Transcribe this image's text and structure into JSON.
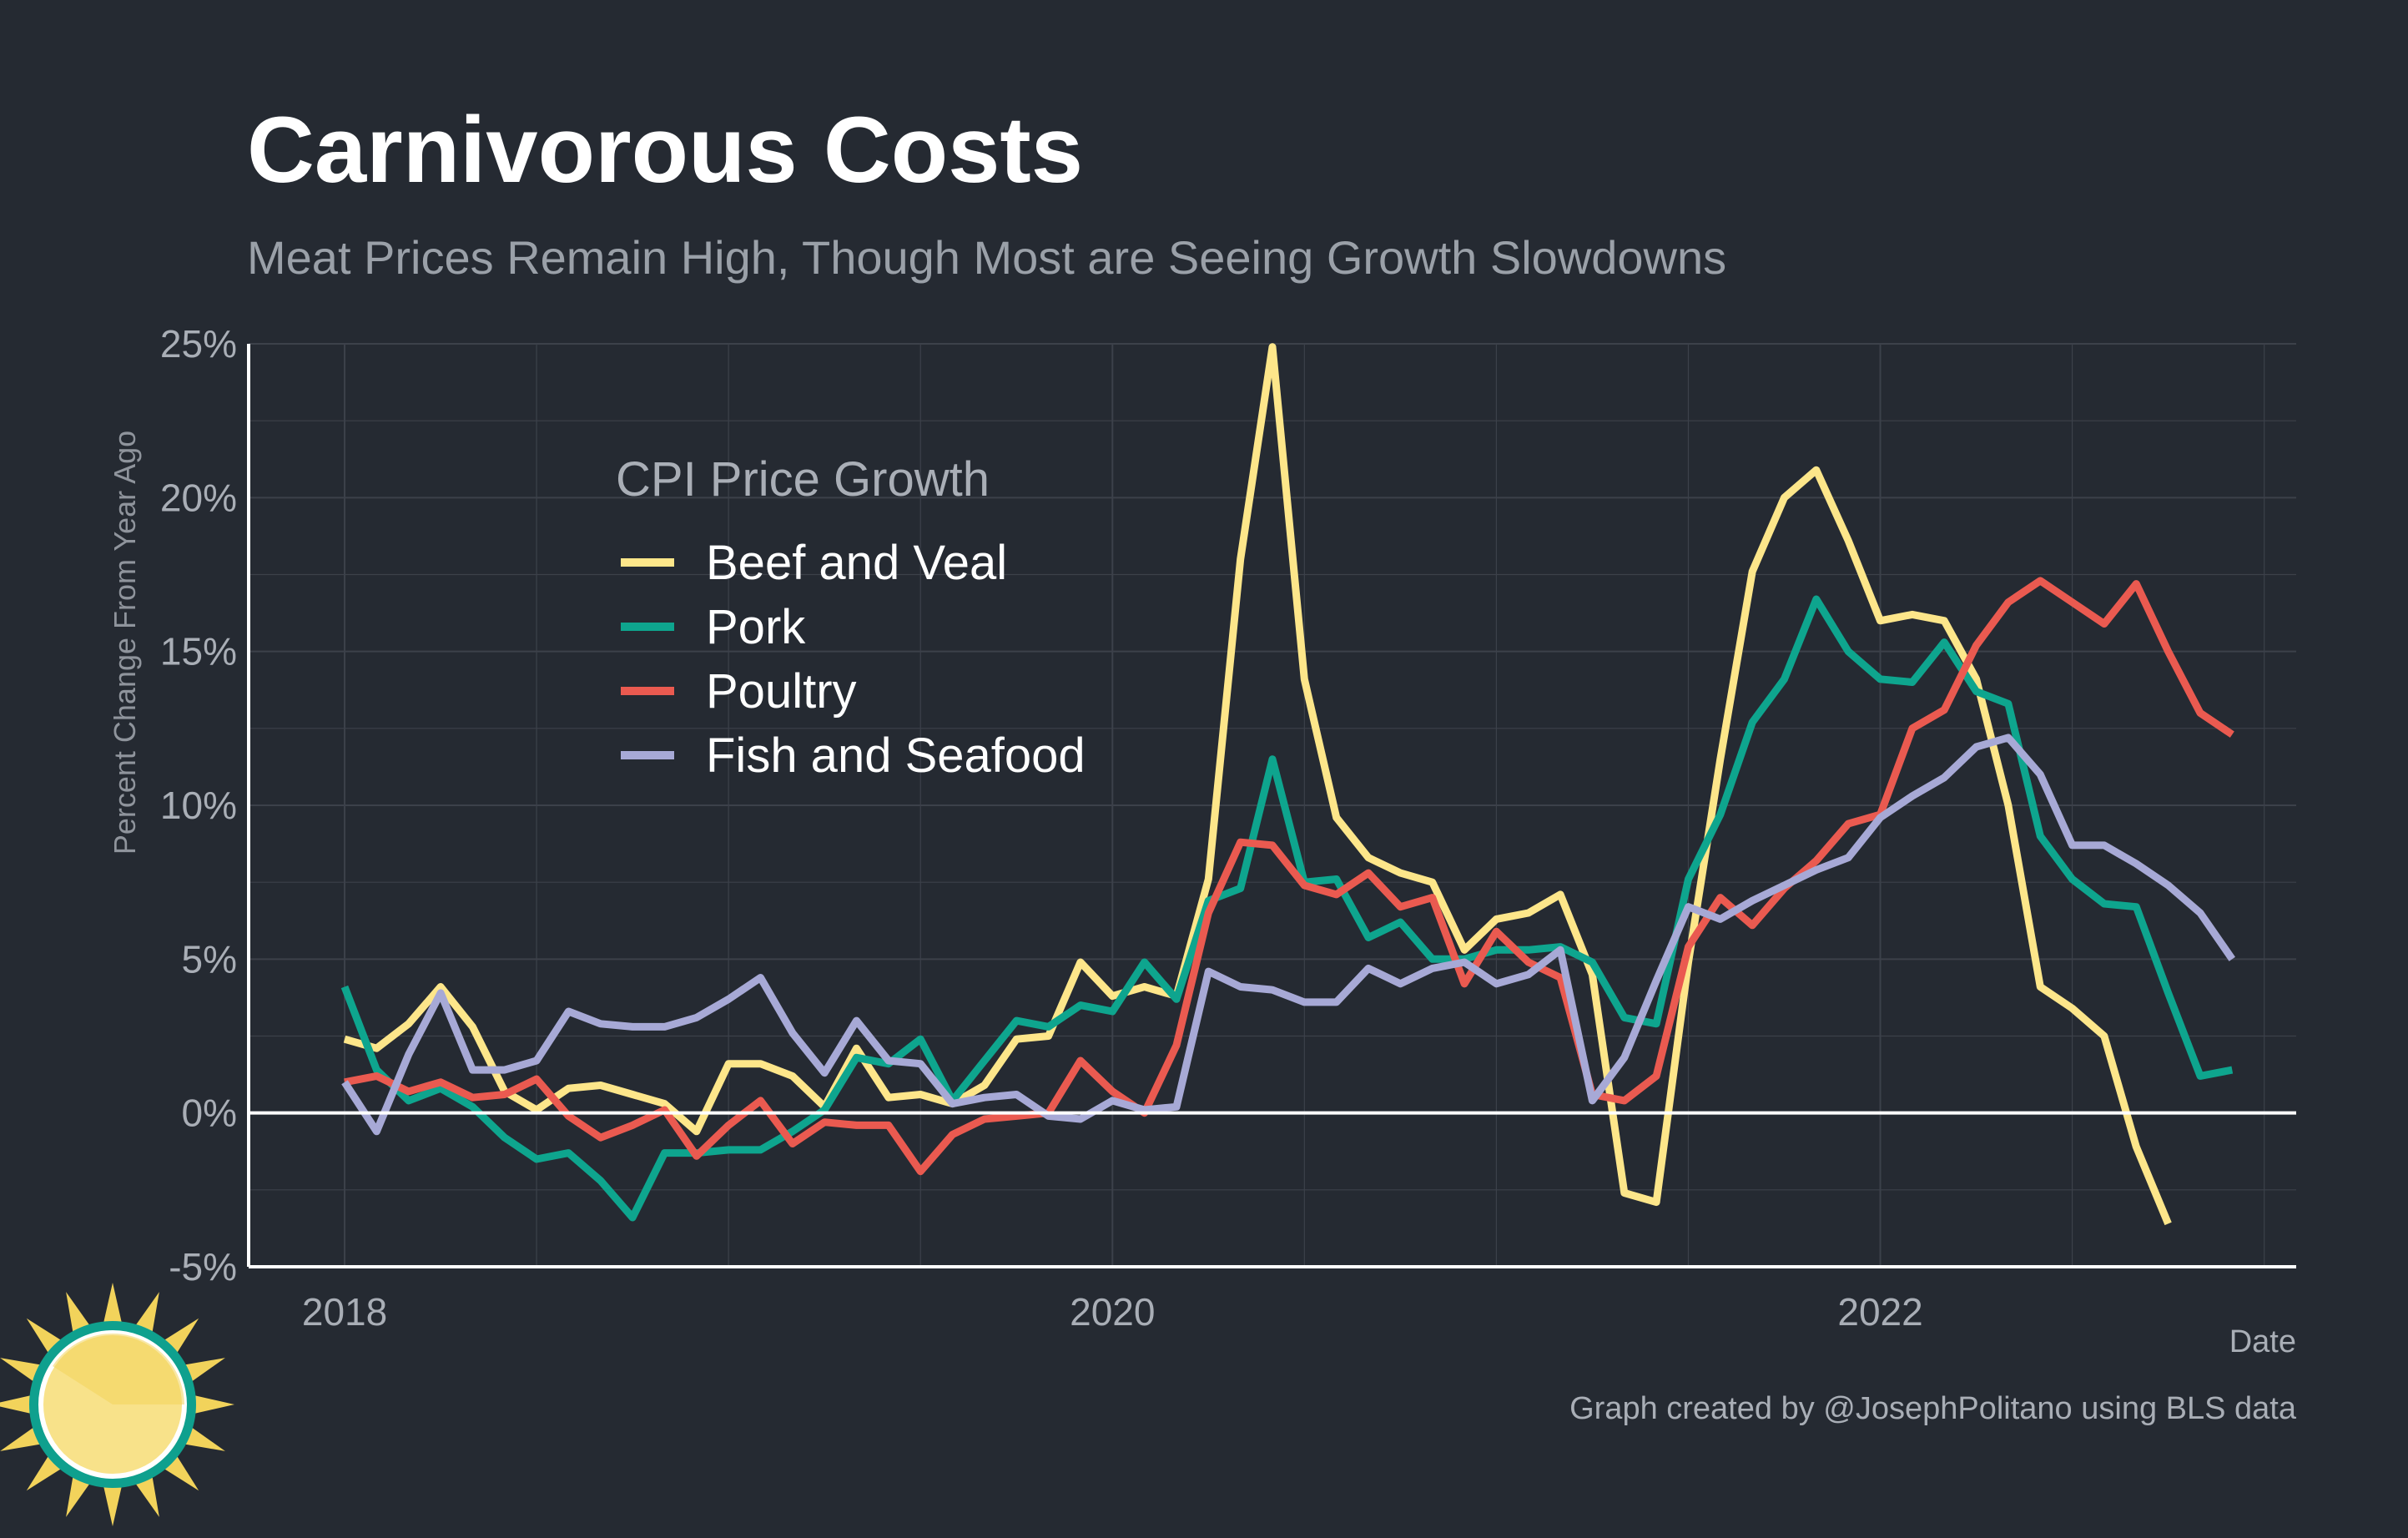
{
  "header": {
    "title": "Carnivorous Costs",
    "subtitle": "Meat Prices Remain High, Though Most are Seeing Growth Slowdowns"
  },
  "caption": "Graph created by @JosephPolitano using BLS data",
  "colors": {
    "background": "#252a32",
    "grid": "#3c414a",
    "axis": "#ffffff",
    "zero_line": "#ffffff"
  },
  "chart_data": {
    "type": "line",
    "title": "Carnivorous Costs",
    "subtitle": "Meat Prices Remain High, Though Most are Seeing Growth Slowdowns",
    "xlabel": "Date",
    "ylabel": "Percent Change From Year Ago",
    "x_start": "2018-01",
    "x_step": "month",
    "xlim": [
      "2017-10",
      "2023-02"
    ],
    "ylim": [
      -5,
      25
    ],
    "x_ticks": [
      2018,
      2020,
      2022
    ],
    "x_tick_labels": [
      "2018",
      "2020",
      "2022"
    ],
    "y_ticks": [
      -5,
      0,
      5,
      10,
      15,
      20,
      25
    ],
    "y_tick_labels": [
      "-5%",
      "0%",
      "5%",
      "10%",
      "15%",
      "20%",
      "25%"
    ],
    "grid": true,
    "legend": {
      "title": "CPI Price Growth",
      "position": "top-left inside"
    },
    "series": [
      {
        "name": "Beef and Veal",
        "color": "#fde68a",
        "values": [
          2.4,
          2.1,
          2.9,
          4.1,
          2.8,
          0.7,
          0.1,
          0.8,
          0.9,
          0.6,
          0.3,
          -0.6,
          1.6,
          1.6,
          1.2,
          0.2,
          2.1,
          0.5,
          0.6,
          0.3,
          0.9,
          2.4,
          2.5,
          4.9,
          3.8,
          4.1,
          3.8,
          7.6,
          18.0,
          24.9,
          14.1,
          9.6,
          8.3,
          7.8,
          7.5,
          5.3,
          6.3,
          6.5,
          7.1,
          4.5,
          -2.6,
          -2.9,
          4.9,
          11.5,
          17.6,
          20.0,
          20.9,
          18.6,
          16.0,
          16.2,
          16.0,
          14.1,
          10.0,
          4.1,
          3.4,
          2.5,
          -1.1,
          -3.6
        ]
      },
      {
        "name": "Pork",
        "color": "#0ea58e",
        "values": [
          4.1,
          1.4,
          0.4,
          0.8,
          0.2,
          -0.8,
          -1.5,
          -1.3,
          -2.2,
          -3.4,
          -1.3,
          -1.3,
          -1.2,
          -1.2,
          -0.6,
          0.1,
          1.8,
          1.6,
          2.4,
          0.4,
          1.7,
          3.0,
          2.8,
          3.5,
          3.3,
          4.9,
          3.7,
          6.9,
          7.3,
          11.5,
          7.5,
          7.6,
          5.7,
          6.2,
          5.0,
          5.0,
          5.3,
          5.3,
          5.4,
          4.9,
          3.1,
          2.9,
          7.6,
          9.7,
          12.7,
          14.1,
          16.7,
          15.0,
          14.1,
          14.0,
          15.3,
          13.7,
          13.3,
          9.0,
          7.6,
          6.8,
          6.7,
          3.9,
          1.2,
          1.4
        ]
      },
      {
        "name": "Poultry",
        "color": "#ea5a50",
        "values": [
          1.0,
          1.2,
          0.7,
          1.0,
          0.5,
          0.6,
          1.1,
          -0.1,
          -0.8,
          -0.4,
          0.1,
          -1.4,
          -0.4,
          0.4,
          -1.0,
          -0.3,
          -0.4,
          -0.4,
          -1.9,
          -0.7,
          -0.2,
          -0.1,
          0.0,
          1.7,
          0.7,
          0.0,
          2.2,
          6.5,
          8.8,
          8.7,
          7.4,
          7.1,
          7.8,
          6.7,
          7.0,
          4.2,
          5.9,
          4.9,
          4.4,
          0.6,
          0.4,
          1.2,
          5.4,
          7.0,
          6.1,
          7.3,
          8.2,
          9.4,
          9.7,
          12.5,
          13.1,
          15.2,
          16.6,
          17.3,
          16.6,
          15.9,
          17.2,
          15.0,
          13.0,
          12.3
        ]
      },
      {
        "name": "Fish and Seafood",
        "color": "#a7a9d6",
        "values": [
          1.0,
          -0.6,
          1.9,
          3.9,
          1.4,
          1.4,
          1.7,
          3.3,
          2.9,
          2.8,
          2.8,
          3.1,
          3.7,
          4.4,
          2.6,
          1.3,
          3.0,
          1.7,
          1.6,
          0.3,
          0.5,
          0.6,
          -0.1,
          -0.2,
          0.4,
          0.1,
          0.2,
          4.6,
          4.1,
          4.0,
          3.6,
          3.6,
          4.7,
          4.2,
          4.7,
          4.9,
          4.2,
          4.5,
          5.3,
          0.4,
          1.8,
          4.3,
          6.7,
          6.3,
          6.9,
          7.4,
          7.9,
          8.3,
          9.6,
          10.3,
          10.9,
          11.9,
          12.2,
          11.0,
          8.7,
          8.7,
          8.1,
          7.4,
          6.5,
          5.0
        ]
      }
    ]
  }
}
